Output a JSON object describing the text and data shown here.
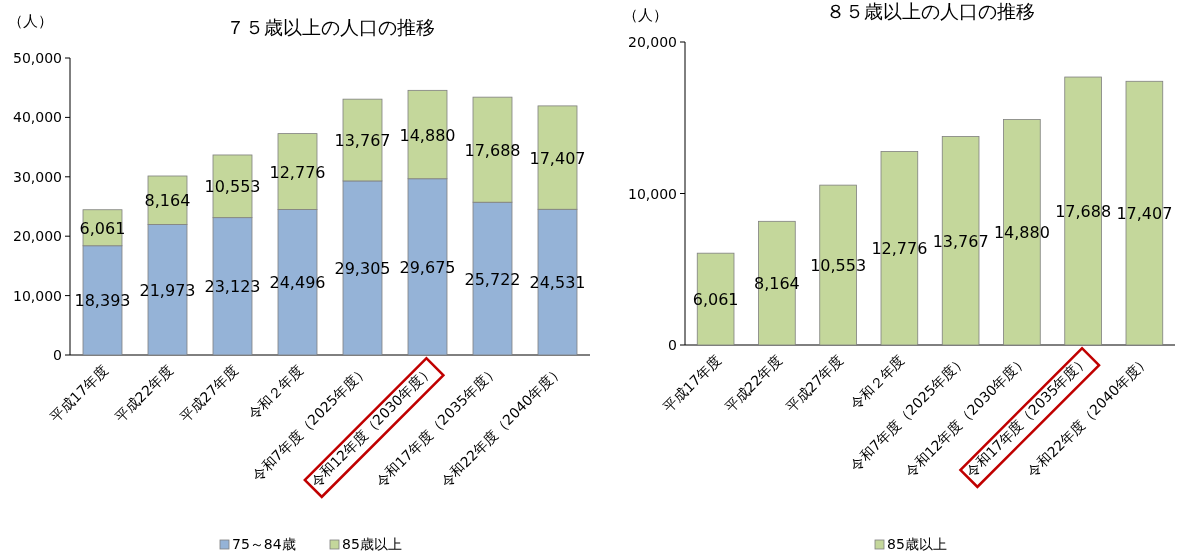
{
  "chart_data": [
    {
      "type": "bar",
      "stacked": true,
      "title": "７５歳以上の人口の推移",
      "ylabel": "（人）",
      "categories": [
        "平成17年度",
        "平成22年度",
        "平成27年度",
        "令和２年度",
        "令和7年度（2025年度）",
        "令和12年度（2030年度）",
        "令和17年度（2035年度）",
        "令和22年度（2040年度）"
      ],
      "series": [
        {
          "name": "75～84歳",
          "color": "#95b3d7",
          "values": [
            18393,
            21973,
            23123,
            24496,
            29305,
            29675,
            25722,
            24531
          ],
          "value_labels": [
            "18,393",
            "21,973",
            "23,123",
            "24,496",
            "29,305",
            "29,675",
            "25,722",
            "24,531"
          ]
        },
        {
          "name": "85歳以上",
          "color": "#c4d79b",
          "values": [
            6061,
            8164,
            10553,
            12776,
            13767,
            14880,
            17688,
            17407
          ],
          "value_labels": [
            "6,061",
            "8,164",
            "10,553",
            "12,776",
            "13,767",
            "14,880",
            "17,688",
            "17,407"
          ]
        }
      ],
      "ylim": [
        0,
        50000
      ],
      "yticks": [
        {
          "value": 0,
          "label": "0"
        },
        {
          "value": 10000,
          "label": "10,000"
        },
        {
          "value": 20000,
          "label": "20,000"
        },
        {
          "value": 30000,
          "label": "30,000"
        },
        {
          "value": 40000,
          "label": "40,000"
        },
        {
          "value": 50000,
          "label": "50,000"
        }
      ],
      "grid": false,
      "legend": "bottom"
    },
    {
      "type": "bar",
      "title": "８５歳以上の人口の推移",
      "ylabel": "（人）",
      "categories": [
        "平成17年度",
        "平成22年度",
        "平成27年度",
        "令和２年度",
        "令和7年度（2025年度）",
        "令和12年度（2030年度）",
        "令和17年度（2035年度）",
        "令和22年度（2040年度）"
      ],
      "series": [
        {
          "name": "85歳以上",
          "color": "#c4d79b",
          "values": [
            6061,
            8164,
            10553,
            12776,
            13767,
            14880,
            17688,
            17407
          ],
          "value_labels": [
            "6,061",
            "8,164",
            "10,553",
            "12,776",
            "13,767",
            "14,880",
            "17,688",
            "17,407"
          ]
        }
      ],
      "ylim": [
        0,
        20000
      ],
      "yticks": [
        {
          "value": 0,
          "label": "0"
        },
        {
          "value": 10000,
          "label": "10,000"
        },
        {
          "value": 20000,
          "label": "20,000"
        }
      ],
      "grid": false,
      "legend": "bottom"
    }
  ]
}
